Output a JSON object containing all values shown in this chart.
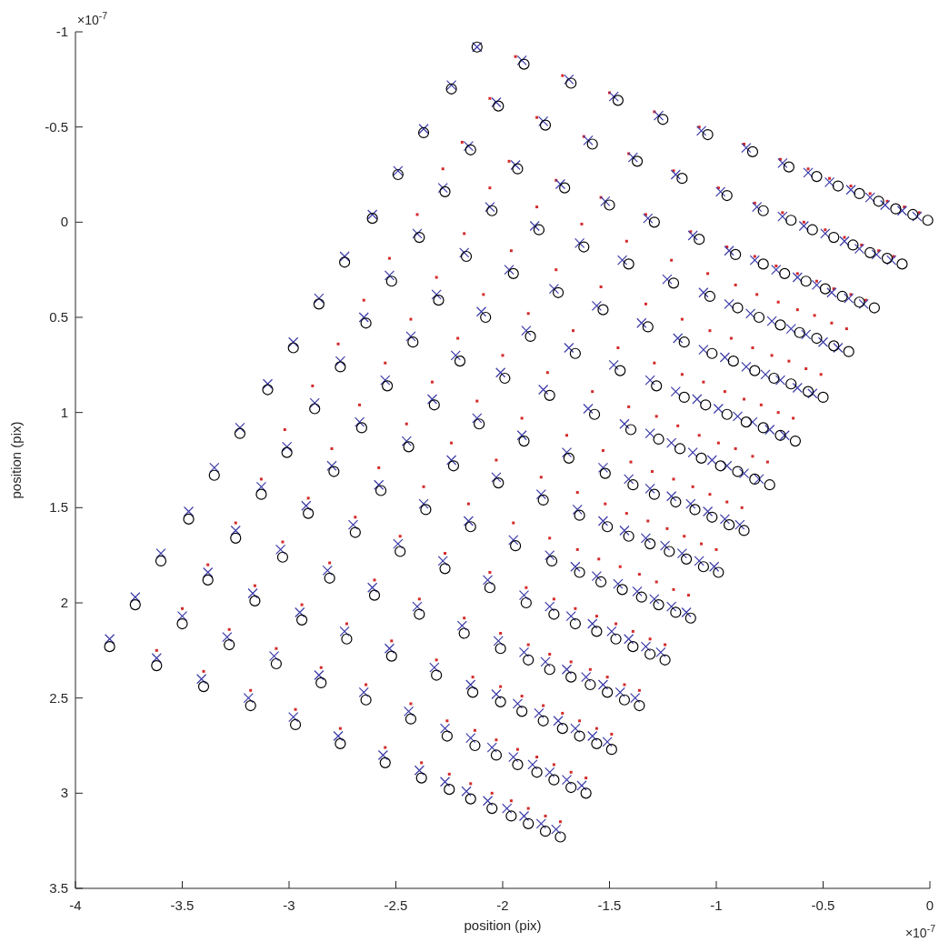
{
  "chart_data": {
    "type": "scatter",
    "xlabel": "position (pix)",
    "ylabel": "position (pix)",
    "xlim": [
      -4,
      0
    ],
    "xticks": [
      -4,
      -3.5,
      -3,
      -2.5,
      -2,
      -1.5,
      -1,
      -0.5,
      0
    ],
    "ylim": [
      3.5,
      -1
    ],
    "yticks": [
      -1,
      -0.5,
      0,
      0.5,
      1,
      1.5,
      2,
      2.5,
      3,
      3.5
    ],
    "annotations": [
      "×10$^{-7}$",
      "×10$^{-7}$"
    ],
    "series": [
      {
        "type": "scatter",
        "marker": "circle",
        "color": "#000000",
        "x": [
          -2.12,
          -1.9,
          -1.68,
          -1.46,
          -1.25,
          -1.04,
          -0.83,
          -0.66,
          -0.53,
          -0.43,
          -0.33,
          -0.24,
          -0.16,
          -0.08,
          -0.01,
          -2.24,
          -2.02,
          -1.8,
          -1.58,
          -1.37,
          -1.16,
          -0.95,
          -0.78,
          -0.65,
          -0.55,
          -0.45,
          -0.36,
          -0.28,
          -0.2,
          -0.13,
          -2.37,
          -2.15,
          -1.93,
          -1.71,
          -1.5,
          -1.29,
          -1.08,
          -0.91,
          -0.78,
          -0.68,
          -0.58,
          -0.49,
          -0.41,
          -0.33,
          -0.26,
          -2.49,
          -2.27,
          -2.05,
          -1.83,
          -1.62,
          -1.41,
          -1.2,
          -1.03,
          -0.9,
          -0.8,
          -0.7,
          -0.61,
          -0.53,
          -0.45,
          -0.38,
          -2.61,
          -2.39,
          -2.17,
          -1.95,
          -1.74,
          -1.53,
          -1.32,
          -1.15,
          -1.02,
          -0.92,
          -0.82,
          -0.73,
          -0.65,
          -0.57,
          -0.5,
          -2.74,
          -2.52,
          -2.3,
          -2.08,
          -1.87,
          -1.66,
          -1.45,
          -1.28,
          -1.15,
          -1.05,
          -0.95,
          -0.86,
          -0.78,
          -0.7,
          -0.63,
          -2.86,
          -2.64,
          -2.42,
          -2.2,
          -1.99,
          -1.78,
          -1.57,
          -1.4,
          -1.27,
          -1.17,
          -1.07,
          -0.98,
          -0.9,
          -0.82,
          -0.75,
          -2.98,
          -2.76,
          -2.54,
          -2.32,
          -2.11,
          -1.9,
          -1.69,
          -1.52,
          -1.39,
          -1.29,
          -1.19,
          -1.1,
          -1.02,
          -0.94,
          -0.87,
          -3.1,
          -2.88,
          -2.66,
          -2.44,
          -2.23,
          -2.02,
          -1.81,
          -1.64,
          -1.51,
          -1.41,
          -1.31,
          -1.22,
          -1.14,
          -1.06,
          -0.99,
          -3.23,
          -3.01,
          -2.79,
          -2.57,
          -2.36,
          -2.15,
          -1.94,
          -1.77,
          -1.64,
          -1.54,
          -1.44,
          -1.35,
          -1.27,
          -1.19,
          -1.12,
          -3.35,
          -3.13,
          -2.91,
          -2.69,
          -2.48,
          -2.27,
          -2.06,
          -1.89,
          -1.76,
          -1.66,
          -1.56,
          -1.47,
          -1.39,
          -1.31,
          -1.24,
          -3.47,
          -3.25,
          -3.03,
          -2.81,
          -2.6,
          -2.39,
          -2.18,
          -2.01,
          -1.88,
          -1.78,
          -1.68,
          -1.59,
          -1.51,
          -1.43,
          -1.36,
          -3.6,
          -3.38,
          -3.16,
          -2.94,
          -2.73,
          -2.52,
          -2.31,
          -2.14,
          -2.01,
          -1.91,
          -1.81,
          -1.72,
          -1.64,
          -1.56,
          -1.49,
          -3.72,
          -3.5,
          -3.28,
          -3.06,
          -2.85,
          -2.64,
          -2.43,
          -2.26,
          -2.13,
          -2.03,
          -1.93,
          -1.84,
          -1.76,
          -1.68,
          -1.61,
          -3.84,
          -3.62,
          -3.4,
          -3.18,
          -2.97,
          -2.76,
          -2.55,
          -2.38,
          -2.25,
          -2.15,
          -2.05,
          -1.96,
          -1.88,
          -1.8,
          -1.73
        ],
        "values": [
          -0.92,
          -0.83,
          -0.73,
          -0.64,
          -0.54,
          -0.46,
          -0.37,
          -0.29,
          -0.24,
          -0.19,
          -0.15,
          -0.11,
          -0.07,
          -0.04,
          -0.01,
          -0.7,
          -0.61,
          -0.51,
          -0.41,
          -0.32,
          -0.23,
          -0.14,
          -0.06,
          -0.01,
          0.04,
          0.08,
          0.12,
          0.16,
          0.19,
          0.22,
          -0.47,
          -0.38,
          -0.28,
          -0.18,
          -0.09,
          0.0,
          0.09,
          0.17,
          0.22,
          0.27,
          0.31,
          0.35,
          0.39,
          0.42,
          0.45,
          -0.25,
          -0.16,
          -0.06,
          0.04,
          0.13,
          0.22,
          0.32,
          0.39,
          0.45,
          0.5,
          0.54,
          0.58,
          0.61,
          0.65,
          0.68,
          -0.02,
          0.08,
          0.18,
          0.27,
          0.37,
          0.46,
          0.55,
          0.63,
          0.69,
          0.73,
          0.78,
          0.82,
          0.85,
          0.89,
          0.92,
          0.21,
          0.31,
          0.41,
          0.5,
          0.6,
          0.69,
          0.78,
          0.86,
          0.92,
          0.96,
          1.01,
          1.05,
          1.08,
          1.12,
          1.15,
          0.43,
          0.53,
          0.63,
          0.73,
          0.82,
          0.91,
          1.01,
          1.09,
          1.14,
          1.19,
          1.24,
          1.28,
          1.31,
          1.35,
          1.38,
          0.66,
          0.76,
          0.86,
          0.96,
          1.06,
          1.15,
          1.24,
          1.32,
          1.38,
          1.43,
          1.47,
          1.51,
          1.55,
          1.59,
          1.62,
          0.88,
          0.98,
          1.08,
          1.18,
          1.28,
          1.37,
          1.46,
          1.54,
          1.6,
          1.65,
          1.69,
          1.73,
          1.77,
          1.81,
          1.84,
          1.11,
          1.21,
          1.31,
          1.41,
          1.51,
          1.6,
          1.7,
          1.78,
          1.84,
          1.89,
          1.93,
          1.97,
          2.01,
          2.05,
          2.08,
          1.33,
          1.43,
          1.53,
          1.63,
          1.73,
          1.82,
          1.92,
          2.0,
          2.06,
          2.11,
          2.15,
          2.19,
          2.23,
          2.27,
          2.3,
          1.56,
          1.66,
          1.76,
          1.87,
          1.96,
          2.06,
          2.16,
          2.24,
          2.3,
          2.35,
          2.39,
          2.43,
          2.47,
          2.51,
          2.54,
          1.78,
          1.88,
          1.99,
          2.09,
          2.19,
          2.28,
          2.38,
          2.47,
          2.52,
          2.57,
          2.62,
          2.66,
          2.7,
          2.74,
          2.77,
          2.01,
          2.11,
          2.22,
          2.32,
          2.42,
          2.51,
          2.61,
          2.7,
          2.75,
          2.8,
          2.85,
          2.89,
          2.93,
          2.97,
          3.0,
          2.23,
          2.33,
          2.44,
          2.54,
          2.64,
          2.74,
          2.84,
          2.92,
          2.98,
          3.03,
          3.08,
          3.12,
          3.16,
          3.2,
          3.23
        ]
      },
      {
        "type": "scatter",
        "marker": "cross",
        "color": "#3a3aa8",
        "x": [
          -2.12,
          -1.91,
          -1.69,
          -1.48,
          -1.27,
          -1.07,
          -0.86,
          -0.69,
          -0.57,
          -0.47,
          -0.37,
          -0.28,
          -0.21,
          -0.13,
          -0.06,
          -2.24,
          -2.03,
          -1.81,
          -1.6,
          -1.39,
          -1.19,
          -0.98,
          -0.81,
          -0.69,
          -0.59,
          -0.49,
          -0.4,
          -0.33,
          -0.25,
          -0.18,
          -2.37,
          -2.16,
          -1.94,
          -1.73,
          -1.52,
          -1.32,
          -1.11,
          -0.94,
          -0.82,
          -0.72,
          -0.62,
          -0.53,
          -0.46,
          -0.38,
          -0.31,
          -2.49,
          -2.28,
          -2.06,
          -1.85,
          -1.64,
          -1.44,
          -1.23,
          -1.06,
          -0.94,
          -0.84,
          -0.74,
          -0.65,
          -0.58,
          -0.5,
          -0.43,
          -2.61,
          -2.4,
          -2.18,
          -1.97,
          -1.76,
          -1.56,
          -1.35,
          -1.18,
          -1.06,
          -0.96,
          -0.86,
          -0.77,
          -0.7,
          -0.62,
          -0.55,
          -2.74,
          -2.53,
          -2.31,
          -2.1,
          -1.89,
          -1.69,
          -1.48,
          -1.31,
          -1.19,
          -1.09,
          -0.99,
          -0.9,
          -0.83,
          -0.75,
          -0.68,
          -2.86,
          -2.65,
          -2.43,
          -2.22,
          -2.01,
          -1.81,
          -1.6,
          -1.43,
          -1.31,
          -1.21,
          -1.11,
          -1.02,
          -0.95,
          -0.87,
          -0.8,
          -2.98,
          -2.76,
          -2.55,
          -2.33,
          -2.12,
          -1.91,
          -1.7,
          -1.53,
          -1.41,
          -1.31,
          -1.21,
          -1.12,
          -1.04,
          -0.96,
          -0.89,
          -3.1,
          -2.88,
          -2.67,
          -2.45,
          -2.24,
          -2.03,
          -1.82,
          -1.65,
          -1.53,
          -1.43,
          -1.33,
          -1.24,
          -1.16,
          -1.08,
          -1.01,
          -3.23,
          -3.01,
          -2.8,
          -2.58,
          -2.37,
          -2.16,
          -1.95,
          -1.78,
          -1.66,
          -1.56,
          -1.46,
          -1.37,
          -1.29,
          -1.21,
          -1.14,
          -3.35,
          -3.13,
          -2.92,
          -2.7,
          -2.49,
          -2.28,
          -2.07,
          -1.9,
          -1.78,
          -1.68,
          -1.58,
          -1.49,
          -1.41,
          -1.33,
          -1.26,
          -3.47,
          -3.25,
          -3.04,
          -2.82,
          -2.61,
          -2.4,
          -2.19,
          -2.02,
          -1.9,
          -1.8,
          -1.7,
          -1.61,
          -1.53,
          -1.45,
          -1.38,
          -3.6,
          -3.38,
          -3.17,
          -2.95,
          -2.74,
          -2.53,
          -2.32,
          -2.15,
          -2.03,
          -1.93,
          -1.83,
          -1.74,
          -1.66,
          -1.58,
          -1.51,
          -3.72,
          -3.5,
          -3.29,
          -3.07,
          -2.86,
          -2.65,
          -2.44,
          -2.27,
          -2.15,
          -2.05,
          -1.95,
          -1.86,
          -1.78,
          -1.7,
          -1.63,
          -3.84,
          -3.62,
          -3.41,
          -3.19,
          -2.98,
          -2.77,
          -2.56,
          -2.39,
          -2.27,
          -2.17,
          -2.07,
          -1.98,
          -1.9,
          -1.82,
          -1.75
        ],
        "values": [
          -0.92,
          -0.85,
          -0.75,
          -0.66,
          -0.56,
          -0.48,
          -0.39,
          -0.31,
          -0.26,
          -0.21,
          -0.17,
          -0.13,
          -0.09,
          -0.06,
          -0.03,
          -0.72,
          -0.63,
          -0.53,
          -0.43,
          -0.34,
          -0.25,
          -0.16,
          -0.08,
          -0.03,
          0.02,
          0.06,
          0.1,
          0.14,
          0.17,
          0.2,
          -0.49,
          -0.4,
          -0.3,
          -0.2,
          -0.11,
          -0.02,
          0.07,
          0.15,
          0.2,
          0.25,
          0.29,
          0.33,
          0.37,
          0.4,
          0.43,
          -0.27,
          -0.18,
          -0.08,
          0.02,
          0.11,
          0.2,
          0.3,
          0.37,
          0.43,
          0.48,
          0.52,
          0.56,
          0.59,
          0.63,
          0.66,
          -0.04,
          0.06,
          0.16,
          0.25,
          0.35,
          0.44,
          0.53,
          0.61,
          0.67,
          0.71,
          0.76,
          0.8,
          0.83,
          0.87,
          0.9,
          0.18,
          0.28,
          0.38,
          0.47,
          0.57,
          0.66,
          0.75,
          0.83,
          0.89,
          0.93,
          0.98,
          1.02,
          1.05,
          1.09,
          1.12,
          0.4,
          0.5,
          0.6,
          0.7,
          0.79,
          0.88,
          0.98,
          1.06,
          1.11,
          1.16,
          1.21,
          1.25,
          1.28,
          1.32,
          1.35,
          0.63,
          0.73,
          0.83,
          0.93,
          1.03,
          1.12,
          1.21,
          1.29,
          1.35,
          1.4,
          1.44,
          1.48,
          1.52,
          1.56,
          1.59,
          0.85,
          0.95,
          1.05,
          1.15,
          1.25,
          1.34,
          1.43,
          1.51,
          1.57,
          1.62,
          1.66,
          1.7,
          1.74,
          1.78,
          1.81,
          1.08,
          1.18,
          1.28,
          1.38,
          1.48,
          1.57,
          1.67,
          1.75,
          1.81,
          1.86,
          1.9,
          1.94,
          1.98,
          2.02,
          2.05,
          1.29,
          1.39,
          1.49,
          1.59,
          1.69,
          1.78,
          1.88,
          1.96,
          2.02,
          2.07,
          2.11,
          2.15,
          2.19,
          2.23,
          2.26,
          1.52,
          1.62,
          1.72,
          1.83,
          1.92,
          2.02,
          2.12,
          2.2,
          2.26,
          2.31,
          2.35,
          2.39,
          2.43,
          2.47,
          2.5,
          1.74,
          1.84,
          1.95,
          2.05,
          2.15,
          2.24,
          2.34,
          2.43,
          2.48,
          2.53,
          2.58,
          2.62,
          2.66,
          2.7,
          2.73,
          1.97,
          2.07,
          2.18,
          2.28,
          2.38,
          2.47,
          2.57,
          2.66,
          2.71,
          2.76,
          2.81,
          2.85,
          2.89,
          2.93,
          2.96,
          2.19,
          2.29,
          2.4,
          2.5,
          2.6,
          2.7,
          2.8,
          2.88,
          2.94,
          2.99,
          3.04,
          3.08,
          3.12,
          3.16,
          3.19
        ]
      },
      {
        "type": "scatter",
        "marker": "square",
        "color": "#d42a2a",
        "x": [
          -1.94,
          -1.72,
          -1.5,
          -1.29,
          -1.08,
          -0.87,
          -0.7,
          -0.57,
          -0.47,
          -0.37,
          -0.28,
          -0.2,
          -0.12,
          -0.05,
          -2.06,
          -1.84,
          -1.62,
          -1.41,
          -1.2,
          -0.99,
          -0.82,
          -0.69,
          -0.59,
          -0.49,
          -0.4,
          -0.32,
          -0.24,
          -0.17,
          -2.19,
          -1.97,
          -1.75,
          -1.54,
          -1.33,
          -1.12,
          -0.95,
          -0.82,
          -0.72,
          -0.62,
          -0.53,
          -0.45,
          -0.37,
          -0.3,
          -2.28,
          -2.06,
          -1.84,
          -1.63,
          -1.42,
          -1.21,
          -1.04,
          -0.91,
          -0.81,
          -0.71,
          -0.62,
          -0.54,
          -0.46,
          -0.39,
          -2.4,
          -2.18,
          -1.96,
          -1.75,
          -1.54,
          -1.33,
          -1.16,
          -1.03,
          -0.93,
          -0.83,
          -0.74,
          -0.66,
          -0.58,
          -0.51,
          -2.53,
          -2.31,
          -2.09,
          -1.88,
          -1.67,
          -1.46,
          -1.29,
          -1.16,
          -1.06,
          -0.96,
          -0.87,
          -0.79,
          -0.71,
          -0.64,
          -2.65,
          -2.43,
          -2.21,
          -2.0,
          -1.79,
          -1.58,
          -1.41,
          -1.28,
          -1.18,
          -1.08,
          -0.99,
          -0.91,
          -0.83,
          -0.76,
          -2.77,
          -2.55,
          -2.33,
          -2.12,
          -1.91,
          -1.7,
          -1.53,
          -1.4,
          -1.3,
          -1.2,
          -1.11,
          -1.03,
          -0.95,
          -0.88,
          -2.89,
          -2.67,
          -2.45,
          -2.24,
          -2.03,
          -1.82,
          -1.65,
          -1.52,
          -1.42,
          -1.32,
          -1.23,
          -1.15,
          -1.07,
          -1.0,
          -3.02,
          -2.8,
          -2.58,
          -2.37,
          -2.16,
          -1.95,
          -1.78,
          -1.65,
          -1.55,
          -1.45,
          -1.36,
          -1.28,
          -1.2,
          -1.13,
          -3.13,
          -2.91,
          -2.69,
          -2.48,
          -2.27,
          -2.06,
          -1.89,
          -1.76,
          -1.66,
          -1.56,
          -1.47,
          -1.39,
          -1.31,
          -1.24,
          -3.25,
          -3.03,
          -2.81,
          -2.6,
          -2.39,
          -2.18,
          -2.01,
          -1.88,
          -1.78,
          -1.68,
          -1.59,
          -1.51,
          -1.43,
          -1.36,
          -3.38,
          -3.16,
          -2.94,
          -2.73,
          -2.52,
          -2.31,
          -2.14,
          -2.01,
          -1.91,
          -1.81,
          -1.72,
          -1.64,
          -1.56,
          -1.49,
          -3.5,
          -3.28,
          -3.06,
          -2.85,
          -2.64,
          -2.43,
          -2.26,
          -2.13,
          -2.03,
          -1.93,
          -1.84,
          -1.76,
          -1.68,
          -1.61,
          -3.62,
          -3.4,
          -3.18,
          -2.97,
          -2.76,
          -2.55,
          -2.38,
          -2.25,
          -2.15,
          -2.05,
          -1.96,
          -1.88,
          -1.8,
          -1.73
        ],
        "values": [
          -0.87,
          -0.77,
          -0.68,
          -0.58,
          -0.5,
          -0.41,
          -0.33,
          -0.28,
          -0.23,
          -0.19,
          -0.15,
          -0.11,
          -0.08,
          -0.05,
          -0.65,
          -0.55,
          -0.45,
          -0.36,
          -0.27,
          -0.18,
          -0.1,
          -0.05,
          0.0,
          0.04,
          0.08,
          0.12,
          0.15,
          0.18,
          -0.42,
          -0.32,
          -0.22,
          -0.13,
          -0.04,
          0.05,
          0.13,
          0.18,
          0.23,
          0.27,
          0.31,
          0.35,
          0.38,
          0.41,
          -0.28,
          -0.18,
          -0.08,
          0.01,
          0.1,
          0.2,
          0.27,
          0.33,
          0.38,
          0.42,
          0.46,
          0.49,
          0.53,
          0.56,
          -0.04,
          0.06,
          0.15,
          0.25,
          0.34,
          0.43,
          0.51,
          0.57,
          0.61,
          0.66,
          0.7,
          0.73,
          0.77,
          0.8,
          0.19,
          0.29,
          0.38,
          0.48,
          0.57,
          0.66,
          0.74,
          0.8,
          0.84,
          0.89,
          0.93,
          0.96,
          1.0,
          1.03,
          0.41,
          0.51,
          0.61,
          0.7,
          0.79,
          0.89,
          0.97,
          1.02,
          1.07,
          1.12,
          1.16,
          1.19,
          1.23,
          1.26,
          0.64,
          0.74,
          0.84,
          0.94,
          1.03,
          1.12,
          1.2,
          1.26,
          1.31,
          1.35,
          1.39,
          1.43,
          1.47,
          1.5,
          0.86,
          0.96,
          1.06,
          1.16,
          1.25,
          1.34,
          1.42,
          1.48,
          1.53,
          1.57,
          1.61,
          1.65,
          1.69,
          1.72,
          1.09,
          1.19,
          1.29,
          1.39,
          1.48,
          1.58,
          1.66,
          1.72,
          1.77,
          1.81,
          1.85,
          1.89,
          1.93,
          1.96,
          1.35,
          1.45,
          1.55,
          1.65,
          1.74,
          1.84,
          1.92,
          1.98,
          2.03,
          2.07,
          2.11,
          2.15,
          2.19,
          2.22,
          1.58,
          1.68,
          1.79,
          1.88,
          1.98,
          2.08,
          2.16,
          2.22,
          2.27,
          2.31,
          2.35,
          2.39,
          2.43,
          2.46,
          1.8,
          1.91,
          2.01,
          2.11,
          2.2,
          2.3,
          2.39,
          2.44,
          2.49,
          2.54,
          2.58,
          2.62,
          2.66,
          2.69,
          2.03,
          2.14,
          2.24,
          2.34,
          2.43,
          2.53,
          2.62,
          2.67,
          2.72,
          2.77,
          2.81,
          2.85,
          2.89,
          2.92,
          2.25,
          2.36,
          2.46,
          2.56,
          2.66,
          2.76,
          2.84,
          2.9,
          2.95,
          3.0,
          3.04,
          3.08,
          3.12,
          3.15
        ]
      }
    ]
  }
}
